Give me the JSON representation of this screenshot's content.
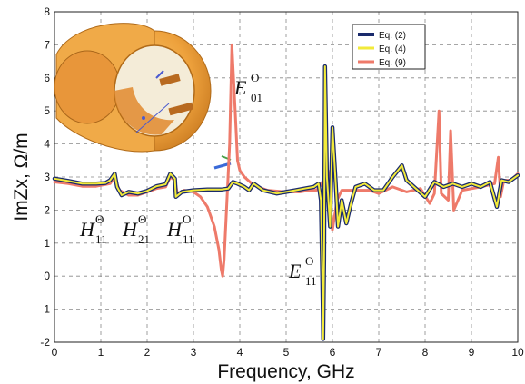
{
  "chart_data": {
    "type": "line",
    "xlabel": "Frequency, GHz",
    "ylabel": "ImZx, Ω/m",
    "xlim": [
      0,
      10
    ],
    "ylim": [
      -2,
      8
    ],
    "xticks": [
      "0",
      "1",
      "2",
      "3",
      "4",
      "5",
      "6",
      "7",
      "8",
      "9",
      "10"
    ],
    "yticks": [
      "-2",
      "-1",
      "0",
      "1",
      "2",
      "3",
      "4",
      "5",
      "6",
      "7",
      "8"
    ],
    "grid": "dashed",
    "legend_position": "top-right",
    "series": [
      {
        "name": "Eq. (2)",
        "color": "#1a2a6c",
        "points": [
          [
            0,
            2.95
          ],
          [
            0.3,
            2.88
          ],
          [
            0.6,
            2.8
          ],
          [
            0.9,
            2.8
          ],
          [
            1.1,
            2.82
          ],
          [
            1.2,
            2.9
          ],
          [
            1.3,
            3.1
          ],
          [
            1.35,
            2.7
          ],
          [
            1.45,
            2.45
          ],
          [
            1.6,
            2.55
          ],
          [
            1.8,
            2.5
          ],
          [
            2.0,
            2.58
          ],
          [
            2.2,
            2.72
          ],
          [
            2.4,
            2.78
          ],
          [
            2.5,
            3.1
          ],
          [
            2.6,
            2.95
          ],
          [
            2.62,
            2.4
          ],
          [
            2.75,
            2.55
          ],
          [
            3.0,
            2.6
          ],
          [
            3.3,
            2.62
          ],
          [
            3.6,
            2.62
          ],
          [
            3.75,
            2.65
          ],
          [
            3.85,
            2.85
          ],
          [
            3.95,
            2.8
          ],
          [
            4.1,
            2.7
          ],
          [
            4.2,
            2.6
          ],
          [
            4.3,
            2.8
          ],
          [
            4.5,
            2.6
          ],
          [
            4.8,
            2.5
          ],
          [
            5.0,
            2.55
          ],
          [
            5.2,
            2.6
          ],
          [
            5.4,
            2.65
          ],
          [
            5.6,
            2.7
          ],
          [
            5.7,
            2.8
          ],
          [
            5.75,
            2.3
          ],
          [
            5.78,
            0.0
          ],
          [
            5.8,
            -1.9
          ],
          [
            5.82,
            0.5
          ],
          [
            5.84,
            6.35
          ],
          [
            5.88,
            3.0
          ],
          [
            5.95,
            1.5
          ],
          [
            6.0,
            4.5
          ],
          [
            6.07,
            2.8
          ],
          [
            6.12,
            1.5
          ],
          [
            6.2,
            2.3
          ],
          [
            6.3,
            1.6
          ],
          [
            6.4,
            2.2
          ],
          [
            6.5,
            2.7
          ],
          [
            6.7,
            2.8
          ],
          [
            6.9,
            2.6
          ],
          [
            7.1,
            2.6
          ],
          [
            7.3,
            3.0
          ],
          [
            7.5,
            3.35
          ],
          [
            7.6,
            2.9
          ],
          [
            7.8,
            2.65
          ],
          [
            8.0,
            2.4
          ],
          [
            8.2,
            2.85
          ],
          [
            8.4,
            2.7
          ],
          [
            8.6,
            2.8
          ],
          [
            8.8,
            2.7
          ],
          [
            9.0,
            2.8
          ],
          [
            9.2,
            2.7
          ],
          [
            9.4,
            2.85
          ],
          [
            9.55,
            2.1
          ],
          [
            9.65,
            2.9
          ],
          [
            9.8,
            2.85
          ],
          [
            10,
            3.05
          ]
        ]
      },
      {
        "name": "Eq. (4)",
        "color": "#f2ea3a",
        "points": [
          [
            0,
            2.95
          ],
          [
            0.3,
            2.88
          ],
          [
            0.6,
            2.8
          ],
          [
            0.9,
            2.8
          ],
          [
            1.1,
            2.82
          ],
          [
            1.2,
            2.9
          ],
          [
            1.3,
            3.1
          ],
          [
            1.35,
            2.7
          ],
          [
            1.45,
            2.45
          ],
          [
            1.6,
            2.55
          ],
          [
            1.8,
            2.5
          ],
          [
            2.0,
            2.58
          ],
          [
            2.2,
            2.72
          ],
          [
            2.4,
            2.78
          ],
          [
            2.5,
            3.1
          ],
          [
            2.6,
            2.95
          ],
          [
            2.62,
            2.4
          ],
          [
            2.75,
            2.55
          ],
          [
            3.0,
            2.6
          ],
          [
            3.3,
            2.62
          ],
          [
            3.6,
            2.62
          ],
          [
            3.75,
            2.65
          ],
          [
            3.85,
            2.85
          ],
          [
            3.95,
            2.8
          ],
          [
            4.1,
            2.7
          ],
          [
            4.2,
            2.6
          ],
          [
            4.3,
            2.8
          ],
          [
            4.5,
            2.6
          ],
          [
            4.8,
            2.5
          ],
          [
            5.0,
            2.55
          ],
          [
            5.2,
            2.6
          ],
          [
            5.4,
            2.65
          ],
          [
            5.6,
            2.7
          ],
          [
            5.7,
            2.8
          ],
          [
            5.75,
            2.3
          ],
          [
            5.78,
            0.0
          ],
          [
            5.8,
            -1.9
          ],
          [
            5.82,
            0.5
          ],
          [
            5.84,
            6.35
          ],
          [
            5.88,
            3.0
          ],
          [
            5.95,
            1.5
          ],
          [
            6.0,
            4.5
          ],
          [
            6.07,
            2.8
          ],
          [
            6.12,
            1.5
          ],
          [
            6.2,
            2.3
          ],
          [
            6.3,
            1.6
          ],
          [
            6.4,
            2.2
          ],
          [
            6.5,
            2.7
          ],
          [
            6.7,
            2.8
          ],
          [
            6.9,
            2.6
          ],
          [
            7.1,
            2.6
          ],
          [
            7.3,
            3.0
          ],
          [
            7.5,
            3.35
          ],
          [
            7.6,
            2.9
          ],
          [
            7.8,
            2.65
          ],
          [
            8.0,
            2.4
          ],
          [
            8.2,
            2.85
          ],
          [
            8.4,
            2.7
          ],
          [
            8.6,
            2.8
          ],
          [
            8.8,
            2.7
          ],
          [
            9.0,
            2.8
          ],
          [
            9.2,
            2.7
          ],
          [
            9.4,
            2.85
          ],
          [
            9.55,
            2.1
          ],
          [
            9.65,
            2.9
          ],
          [
            9.8,
            2.85
          ],
          [
            10,
            3.05
          ]
        ]
      },
      {
        "name": "Eq. (9)",
        "color": "#ee7a6a",
        "points": [
          [
            0,
            2.85
          ],
          [
            0.3,
            2.8
          ],
          [
            0.6,
            2.72
          ],
          [
            0.9,
            2.72
          ],
          [
            1.2,
            2.8
          ],
          [
            1.3,
            3.0
          ],
          [
            1.4,
            2.6
          ],
          [
            1.6,
            2.45
          ],
          [
            1.8,
            2.45
          ],
          [
            2.0,
            2.55
          ],
          [
            2.2,
            2.65
          ],
          [
            2.4,
            2.7
          ],
          [
            2.5,
            3.0
          ],
          [
            2.6,
            2.9
          ],
          [
            2.65,
            2.5
          ],
          [
            2.8,
            2.6
          ],
          [
            3.0,
            2.55
          ],
          [
            3.15,
            2.4
          ],
          [
            3.3,
            2.1
          ],
          [
            3.45,
            1.5
          ],
          [
            3.55,
            0.8
          ],
          [
            3.6,
            0.2
          ],
          [
            3.63,
            0.0
          ],
          [
            3.66,
            0.5
          ],
          [
            3.72,
            2.2
          ],
          [
            3.78,
            4.0
          ],
          [
            3.83,
            7.0
          ],
          [
            3.9,
            5.0
          ],
          [
            3.95,
            3.5
          ],
          [
            4.0,
            3.2
          ],
          [
            4.1,
            3.0
          ],
          [
            4.3,
            2.75
          ],
          [
            4.6,
            2.6
          ],
          [
            5.0,
            2.55
          ],
          [
            5.3,
            2.55
          ],
          [
            5.5,
            2.6
          ],
          [
            5.65,
            2.6
          ],
          [
            5.75,
            2.75
          ],
          [
            5.8,
            2.9
          ],
          [
            5.9,
            3.2
          ],
          [
            6.0,
            1.4
          ],
          [
            6.1,
            2.3
          ],
          [
            6.2,
            2.6
          ],
          [
            6.4,
            2.6
          ],
          [
            6.6,
            2.6
          ],
          [
            6.8,
            2.6
          ],
          [
            7.0,
            2.5
          ],
          [
            7.3,
            2.7
          ],
          [
            7.6,
            2.55
          ],
          [
            7.9,
            2.65
          ],
          [
            8.1,
            2.2
          ],
          [
            8.2,
            2.5
          ],
          [
            8.3,
            5.0
          ],
          [
            8.35,
            2.5
          ],
          [
            8.5,
            2.3
          ],
          [
            8.55,
            4.4
          ],
          [
            8.62,
            2.0
          ],
          [
            8.8,
            2.6
          ],
          [
            9.2,
            2.7
          ],
          [
            9.5,
            2.8
          ],
          [
            9.58,
            3.6
          ],
          [
            9.63,
            2.4
          ],
          [
            9.7,
            2.9
          ],
          [
            9.85,
            2.9
          ],
          [
            10,
            3.1
          ]
        ]
      }
    ]
  },
  "annotations": [
    {
      "base": "H",
      "sup": "Θ",
      "sub": "11"
    },
    {
      "base": "H",
      "sup": "Θ",
      "sub": "21"
    },
    {
      "base": "H",
      "sup": "O",
      "sub": "11"
    },
    {
      "base": "E",
      "sup": "O",
      "sub": "01"
    },
    {
      "base": "E",
      "sup": "O",
      "sub": "11"
    }
  ]
}
